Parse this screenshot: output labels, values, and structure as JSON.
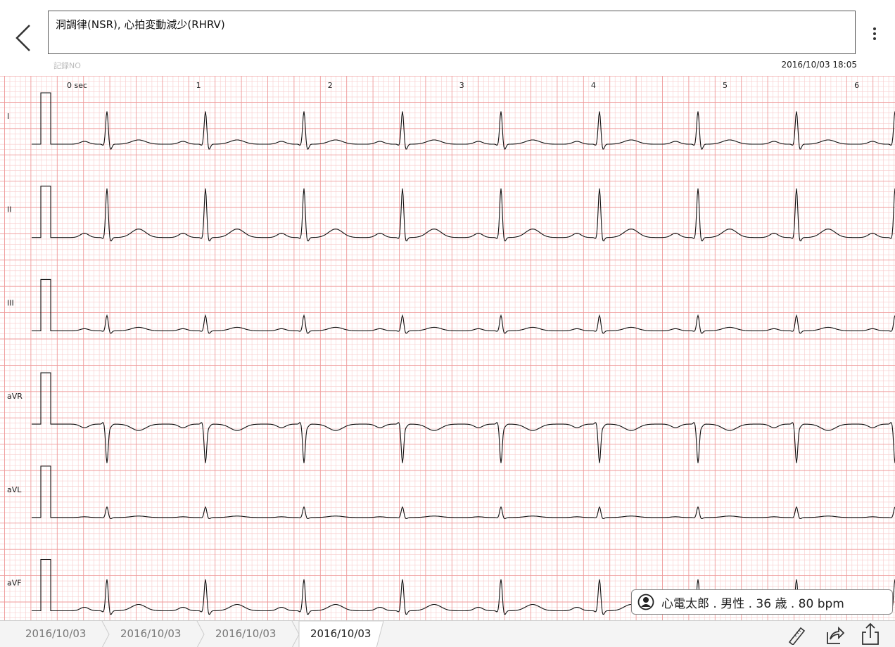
{
  "header": {
    "diagnosis": "洞調律(NSR), 心拍変動減少(RHRV)",
    "record_no": "記録NO",
    "datetime": "2016/10/03 18:05"
  },
  "time_labels": [
    "0 sec",
    "1",
    "2",
    "3",
    "4",
    "5",
    "6"
  ],
  "leads": [
    "I",
    "II",
    "III",
    "aVR",
    "aVL",
    "aVF"
  ],
  "patient": {
    "info": "心電太郎 . 男性 . 36 歳 . 80 bpm"
  },
  "tabs": [
    "2016/10/03",
    "2016/10/03",
    "2016/10/03",
    "2016/10/03"
  ]
}
